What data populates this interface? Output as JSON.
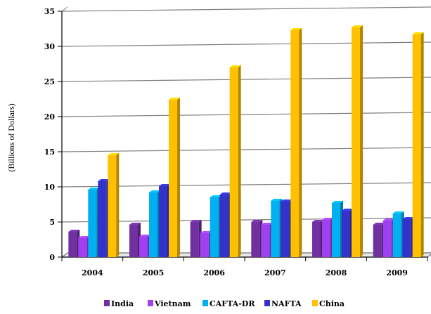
{
  "chart_data": {
    "type": "bar",
    "ylabel": "(Billions of Dollars)",
    "ylim": [
      0,
      35
    ],
    "yticks": [
      0,
      5,
      10,
      15,
      20,
      25,
      30,
      35
    ],
    "categories": [
      "2004",
      "2005",
      "2006",
      "2007",
      "2008",
      "2009"
    ],
    "series": [
      {
        "name": "India",
        "color": "#7030a0",
        "values": [
          3.6,
          4.6,
          5.0,
          5.0,
          5.0,
          4.6
        ]
      },
      {
        "name": "Vietnam",
        "color": "#a040f0",
        "values": [
          2.7,
          2.9,
          3.4,
          4.6,
          5.3,
          5.2
        ]
      },
      {
        "name": "CAFTA-DR",
        "color": "#00b0f0",
        "values": [
          9.6,
          9.2,
          8.5,
          8.0,
          7.7,
          6.2
        ]
      },
      {
        "name": "NAFTA",
        "color": "#3333cc",
        "values": [
          10.8,
          10.1,
          8.9,
          7.9,
          6.6,
          5.4
        ]
      },
      {
        "name": "China",
        "color": "#ffc000",
        "values": [
          14.5,
          22.4,
          27.0,
          32.3,
          32.7,
          31.7
        ]
      }
    ],
    "grid": true,
    "legend": "bottom"
  }
}
